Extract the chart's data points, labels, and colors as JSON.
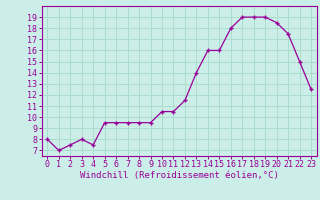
{
  "x": [
    0,
    1,
    2,
    3,
    4,
    5,
    6,
    7,
    8,
    9,
    10,
    11,
    12,
    13,
    14,
    15,
    16,
    17,
    18,
    19,
    20,
    21,
    22,
    23
  ],
  "y": [
    8,
    7,
    7.5,
    8,
    7.5,
    9.5,
    9.5,
    9.5,
    9.5,
    9.5,
    10.5,
    10.5,
    11.5,
    14,
    16,
    16,
    18,
    19,
    19,
    19,
    18.5,
    17.5,
    15,
    12.5
  ],
  "line_color": "#990099",
  "marker_color": "#990099",
  "bg_color": "#cceee8",
  "grid_color": "#aaddcc",
  "xlabel": "Windchill (Refroidissement éolien,°C)",
  "xlabel_color": "#990099",
  "tick_color": "#990099",
  "spine_color": "#990099",
  "ylim_min": 6.5,
  "ylim_max": 20.0,
  "xlim_min": -0.5,
  "xlim_max": 23.5,
  "yticks": [
    7,
    8,
    9,
    10,
    11,
    12,
    13,
    14,
    15,
    16,
    17,
    18,
    19
  ],
  "xticks": [
    0,
    1,
    2,
    3,
    4,
    5,
    6,
    7,
    8,
    9,
    10,
    11,
    12,
    13,
    14,
    15,
    16,
    17,
    18,
    19,
    20,
    21,
    22,
    23
  ],
  "xtick_labels": [
    "0",
    "1",
    "2",
    "3",
    "4",
    "5",
    "6",
    "7",
    "8",
    "9",
    "10",
    "11",
    "12",
    "13",
    "14",
    "15",
    "16",
    "17",
    "18",
    "19",
    "20",
    "21",
    "22",
    "23"
  ],
  "tick_fontsize": 6,
  "xlabel_fontsize": 6.5
}
